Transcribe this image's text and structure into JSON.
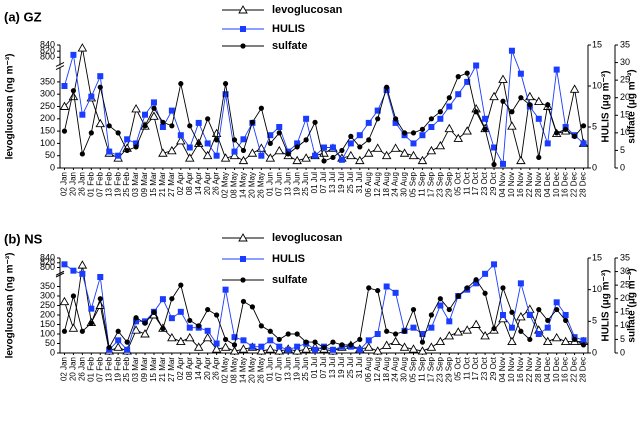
{
  "chart_data": [
    {
      "type": "line",
      "title": "(a) GZ",
      "categories": [
        "02 Jan",
        "20 Jan",
        "26 Jan",
        "01 Feb",
        "07 Feb",
        "13 Feb",
        "19 Feb",
        "25 Feb",
        "03 Mar",
        "09 Mar",
        "15 Mar",
        "21 Mar",
        "27 Mar",
        "02 Apr",
        "08 Apr",
        "14 Apr",
        "20 Apr",
        "26 Apr",
        "02 May",
        "08 May",
        "14 May",
        "20 May",
        "26 May",
        "01 Jun",
        "07 Jun",
        "13 Jun",
        "19 Jun",
        "25 Jun",
        "01 Jul",
        "07 Jul",
        "13 Jul",
        "19 Jul",
        "25 Jul",
        "31 Jul",
        "06 Aug",
        "12 Aug",
        "18 Aug",
        "24 Aug",
        "30 Aug",
        "05 Sep",
        "11 Sep",
        "17 Sep",
        "23 Sep",
        "29 Sep",
        "05 Oct",
        "11 Oct",
        "17 Oct",
        "23 Oct",
        "29 Oct",
        "04 Nov",
        "10 Nov",
        "16 Nov",
        "22 Nov",
        "28 Nov",
        "04 Dec",
        "10 Dec",
        "16 Dec",
        "22 Dec",
        "28 Dec"
      ],
      "ylabel": "levoglucosan (ng m⁻³)",
      "y2label": "HULIS (μg m⁻³)",
      "y3label": "sulfate (μg m⁻³)",
      "ylim": [
        0,
        840
      ],
      "ybreak": [
        400,
        780
      ],
      "yticks": [
        0,
        50,
        100,
        150,
        200,
        250,
        300,
        350,
        800,
        820,
        840
      ],
      "y2lim": [
        0,
        15
      ],
      "y2ticks": [
        0,
        5,
        10,
        15
      ],
      "y3lim": [
        0,
        35
      ],
      "y3ticks": [
        0,
        5,
        10,
        15,
        20,
        25,
        30,
        35
      ],
      "series": [
        {
          "name": "levoglucosan",
          "color": "#000000",
          "marker": "triangle",
          "axis": "y",
          "values": [
            250,
            290,
            830,
            285,
            180,
            60,
            40,
            80,
            240,
            170,
            210,
            60,
            70,
            110,
            40,
            100,
            50,
            140,
            40,
            50,
            30,
            60,
            80,
            40,
            70,
            50,
            30,
            40,
            50,
            60,
            80,
            40,
            50,
            30,
            60,
            80,
            50,
            80,
            60,
            50,
            30,
            70,
            90,
            160,
            120,
            150,
            240,
            160,
            290,
            360,
            170,
            30,
            290,
            270,
            250,
            140,
            150,
            320,
            100
          ]
        },
        {
          "name": "HULIS",
          "color": "#1a3cff",
          "marker": "square",
          "axis": "y2",
          "values": [
            10,
            13.8,
            6.5,
            8.7,
            11.2,
            2,
            1.5,
            3.5,
            3,
            6.5,
            8,
            5,
            7,
            4,
            2.5,
            5.5,
            3,
            1.5,
            9,
            2,
            3.5,
            5.5,
            1.5,
            4,
            5,
            2,
            3,
            6,
            1.5,
            2.5,
            2.5,
            1,
            3,
            4,
            5.5,
            7,
            9.5,
            5.5,
            4,
            3,
            4,
            5,
            6,
            7.5,
            9,
            10.5,
            12.5,
            6,
            2.5,
            0.5,
            14.3,
            11.5,
            7.5,
            6,
            3,
            12,
            5,
            4,
            3
          ]
        },
        {
          "name": "sulfate",
          "color": "#000000",
          "marker": "circle",
          "axis": "y3",
          "values": [
            10.5,
            22,
            4,
            10,
            23,
            12,
            10,
            5,
            6,
            12,
            17,
            13,
            12,
            24,
            12,
            7,
            14,
            8,
            24,
            8,
            5,
            13,
            17,
            7,
            10,
            4,
            6,
            8,
            13,
            2,
            3,
            5,
            9,
            6,
            8,
            14,
            23,
            14,
            10,
            10,
            11,
            14,
            16,
            20,
            26,
            27,
            16,
            11,
            1,
            19,
            16,
            20,
            18,
            3,
            18,
            10,
            11,
            9,
            12
          ]
        }
      ]
    },
    {
      "type": "line",
      "title": "(b) NS",
      "categories": [
        "02 Jan",
        "20 Jan",
        "26 Jan",
        "01 Feb",
        "07 Feb",
        "13 Feb",
        "19 Feb",
        "25 Feb",
        "03 Mar",
        "09 Mar",
        "15 Mar",
        "21 Mar",
        "27 Mar",
        "02 Apr",
        "08 Apr",
        "14 Apr",
        "20 Apr",
        "26 Apr",
        "02 May",
        "08 May",
        "14 May",
        "20 May",
        "26 May",
        "01 Jun",
        "07 Jun",
        "13 Jun",
        "19 Jun",
        "25 Jun",
        "01 Jul",
        "07 Jul",
        "13 Jul",
        "19 Jul",
        "25 Jul",
        "31 Jul",
        "06 Aug",
        "12 Aug",
        "18 Aug",
        "24 Aug",
        "30 Aug",
        "05 Sep",
        "11 Sep",
        "17 Sep",
        "23 Sep",
        "29 Sep",
        "05 Oct",
        "11 Oct",
        "17 Oct",
        "23 Oct",
        "29 Oct",
        "04 Nov",
        "10 Nov",
        "16 Nov",
        "22 Nov",
        "28 Nov",
        "04 Dec",
        "10 Dec",
        "16 Dec",
        "22 Dec",
        "28 Dec"
      ],
      "ylabel": "levoglucosan (ng m⁻³)",
      "y2label": "HULIS (μg m⁻³)",
      "y3label": "sulfate (μg m⁻³)",
      "ylim": [
        0,
        840
      ],
      "ybreak": [
        400,
        780
      ],
      "yticks": [
        0,
        50,
        100,
        150,
        200,
        250,
        300,
        350,
        800,
        820,
        840
      ],
      "y2lim": [
        0,
        15
      ],
      "y2ticks": [
        0,
        5,
        10,
        15
      ],
      "y3lim": [
        0,
        35
      ],
      "y3ticks": [
        0,
        5,
        10,
        15,
        20,
        25,
        30,
        35
      ],
      "series": [
        {
          "name": "levoglucosan",
          "color": "#000000",
          "marker": "triangle",
          "axis": "y",
          "values": [
            270,
            130,
            810,
            160,
            250,
            10,
            30,
            10,
            120,
            100,
            200,
            130,
            80,
            60,
            80,
            30,
            80,
            20,
            30,
            10,
            20,
            30,
            10,
            20,
            10,
            20,
            10,
            20,
            30,
            20,
            10,
            30,
            40,
            20,
            30,
            10,
            40,
            60,
            30,
            20,
            10,
            30,
            60,
            90,
            110,
            120,
            150,
            90,
            120,
            180,
            60,
            190,
            230,
            120,
            60,
            80,
            60,
            60,
            60
          ]
        },
        {
          "name": "HULIS",
          "color": "#1a3cff",
          "marker": "square",
          "axis": "y2",
          "values": [
            14,
            13,
            12.5,
            7,
            12,
            0.5,
            2,
            0.5,
            5,
            5,
            6.5,
            8.5,
            5.5,
            6.5,
            4,
            4,
            3.5,
            1.5,
            10,
            2.5,
            2,
            1,
            1,
            2,
            1,
            0.5,
            1,
            1.5,
            0.5,
            1,
            0.5,
            1,
            1,
            0.5,
            2,
            3,
            10.5,
            9.5,
            3.5,
            4,
            3,
            4,
            7.5,
            5,
            9,
            10,
            11,
            12.5,
            14,
            6,
            4,
            11,
            6,
            3,
            4,
            8,
            6,
            2.5,
            2
          ]
        },
        {
          "name": "sulfate",
          "color": "#000000",
          "marker": "circle",
          "axis": "y3",
          "values": [
            8,
            21,
            8,
            11,
            20,
            2,
            8,
            4,
            13,
            11,
            15,
            9,
            20,
            25,
            12,
            10,
            16,
            14,
            5,
            3,
            19,
            17,
            10,
            8,
            5,
            7,
            7,
            4,
            4,
            2,
            4,
            3,
            3,
            5,
            24,
            23,
            8,
            7,
            8,
            16,
            4,
            14,
            20,
            16,
            21,
            24,
            27,
            22,
            9,
            24,
            15,
            8,
            5,
            16,
            12,
            16,
            12,
            5,
            3
          ]
        }
      ]
    }
  ]
}
